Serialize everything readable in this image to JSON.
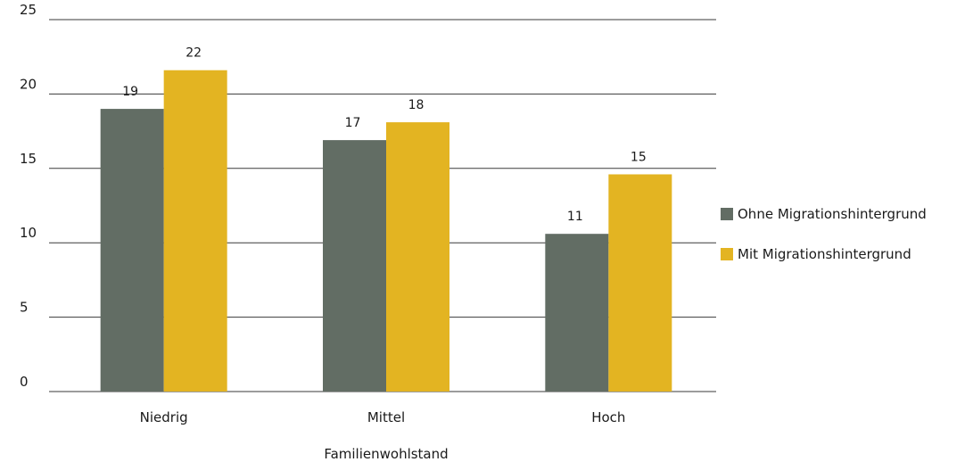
{
  "chart_data": {
    "type": "bar",
    "title": "",
    "xlabel": "Familienwohlstand",
    "ylabel": "",
    "categories": [
      "Niedrig",
      "Mittel",
      "Hoch"
    ],
    "series": [
      {
        "name": "Ohne Migrationshintergrund",
        "values": [
          19,
          16.9,
          10.6
        ],
        "labels": [
          "19",
          "17",
          "11"
        ],
        "color": "#626d64"
      },
      {
        "name": "Mit Migrationshintergrund",
        "values": [
          21.6,
          18.1,
          14.6
        ],
        "labels": [
          "22",
          "18",
          "15"
        ],
        "color": "#e3b422"
      }
    ],
    "ylim": [
      0,
      25
    ],
    "yticks": [
      0,
      5,
      10,
      15,
      20,
      25
    ],
    "grid": true,
    "legend": "right"
  }
}
